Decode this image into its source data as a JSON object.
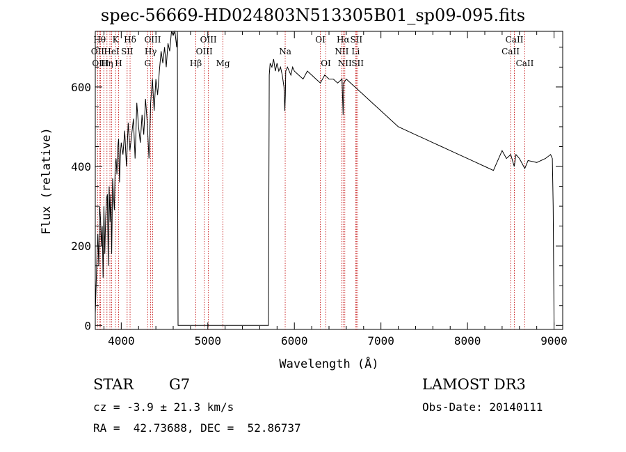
{
  "chart_data": {
    "type": "line",
    "title": "spec-56669-HD024803N513305B01_sp09-095.fits",
    "xlabel": "Wavelength (Å)",
    "ylabel": "Flux (relative)",
    "xlim": [
      3700,
      9100
    ],
    "ylim": [
      -10,
      740
    ],
    "xticks": [
      4000,
      5000,
      6000,
      7000,
      8000,
      9000
    ],
    "yticks": [
      0,
      200,
      400,
      600
    ],
    "series": [
      {
        "name": "spectrum",
        "x": [
          3700,
          3710,
          3720,
          3730,
          3740,
          3750,
          3760,
          3770,
          3780,
          3790,
          3800,
          3810,
          3820,
          3830,
          3840,
          3850,
          3860,
          3870,
          3880,
          3890,
          3900,
          3910,
          3920,
          3930,
          3940,
          3950,
          3960,
          3970,
          3980,
          3990,
          4000,
          4020,
          4040,
          4060,
          4080,
          4100,
          4120,
          4140,
          4160,
          4180,
          4200,
          4220,
          4240,
          4260,
          4280,
          4300,
          4320,
          4340,
          4360,
          4380,
          4400,
          4420,
          4440,
          4460,
          4480,
          4500,
          4520,
          4540,
          4560,
          4580,
          4600,
          4620,
          4640,
          4648,
          4652,
          4656,
          4660,
          5700,
          5710,
          5720,
          5740,
          5760,
          5780,
          5800,
          5820,
          5840,
          5860,
          5880,
          5890,
          5896,
          5900,
          5920,
          5940,
          5960,
          5980,
          6000,
          6050,
          6100,
          6150,
          6200,
          6250,
          6300,
          6350,
          6400,
          6450,
          6500,
          6550,
          6563,
          6570,
          6600,
          6650,
          6700,
          6750,
          6800,
          6850,
          6900,
          6950,
          7000,
          7100,
          7200,
          7300,
          7400,
          7500,
          7600,
          7700,
          7800,
          7900,
          8000,
          8100,
          8200,
          8300,
          8400,
          8450,
          8500,
          8540,
          8560,
          8600,
          8662,
          8700,
          8800,
          8900,
          8960,
          8980,
          8990,
          9000
        ],
        "y": [
          30,
          100,
          180,
          230,
          150,
          300,
          270,
          200,
          250,
          120,
          300,
          180,
          270,
          320,
          330,
          150,
          350,
          260,
          330,
          180,
          370,
          330,
          290,
          400,
          420,
          380,
          450,
          470,
          360,
          430,
          460,
          430,
          490,
          400,
          510,
          440,
          480,
          520,
          420,
          560,
          500,
          460,
          530,
          480,
          570,
          510,
          420,
          560,
          620,
          540,
          620,
          580,
          640,
          690,
          660,
          700,
          650,
          710,
          690,
          760,
          730,
          760,
          700,
          740,
          300,
          0,
          0,
          0,
          630,
          660,
          650,
          670,
          640,
          660,
          640,
          650,
          630,
          600,
          540,
          580,
          640,
          650,
          640,
          630,
          650,
          640,
          630,
          620,
          640,
          630,
          620,
          610,
          630,
          620,
          620,
          610,
          620,
          530,
          610,
          620,
          610,
          600,
          590,
          580,
          570,
          560,
          550,
          540,
          520,
          500,
          490,
          480,
          470,
          460,
          450,
          440,
          430,
          420,
          410,
          400,
          390,
          440,
          420,
          430,
          400,
          430,
          420,
          395,
          415,
          410,
          420,
          430,
          420,
          300,
          0
        ]
      }
    ],
    "line_markers": [
      {
        "wavelength": 3727,
        "label": "OII",
        "row": 1
      },
      {
        "wavelength": 3750,
        "label": "Hθ",
        "row": 0
      },
      {
        "wavelength": 3760,
        "label": "OIII",
        "row": 2
      },
      {
        "wavelength": 3798,
        "label": "",
        "row": 0
      },
      {
        "wavelength": 3835,
        "label": "Hη",
        "row": 2
      },
      {
        "wavelength": 3869,
        "label": "",
        "row": 1
      },
      {
        "wavelength": 3889,
        "label": "HeI",
        "row": 1
      },
      {
        "wavelength": 3934,
        "label": "K",
        "row": 0
      },
      {
        "wavelength": 3969,
        "label": "H",
        "row": 2
      },
      {
        "wavelength": 4068,
        "label": "SII",
        "row": 1
      },
      {
        "wavelength": 4102,
        "label": "Hδ",
        "row": 0
      },
      {
        "wavelength": 4305,
        "label": "G",
        "row": 2
      },
      {
        "wavelength": 4340,
        "label": "Hγ",
        "row": 1
      },
      {
        "wavelength": 4363,
        "label": "OIII",
        "row": 0
      },
      {
        "wavelength": 4861,
        "label": "Hβ",
        "row": 2
      },
      {
        "wavelength": 4959,
        "label": "OIII",
        "row": 1
      },
      {
        "wavelength": 5007,
        "label": "OIII",
        "row": 0
      },
      {
        "wavelength": 5175,
        "label": "Mg",
        "row": 2
      },
      {
        "wavelength": 5894,
        "label": "Na",
        "row": 1
      },
      {
        "wavelength": 6300,
        "label": "OI",
        "row": 0
      },
      {
        "wavelength": 6364,
        "label": "OI",
        "row": 2
      },
      {
        "wavelength": 6548,
        "label": "NII",
        "row": 1
      },
      {
        "wavelength": 6563,
        "label": "Hα",
        "row": 0
      },
      {
        "wavelength": 6583,
        "label": "NII",
        "row": 2
      },
      {
        "wavelength": 6708,
        "label": "Li",
        "row": 1
      },
      {
        "wavelength": 6716,
        "label": "SII",
        "row": 0
      },
      {
        "wavelength": 6731,
        "label": "SII",
        "row": 2
      },
      {
        "wavelength": 8498,
        "label": "CaII",
        "row": 1
      },
      {
        "wavelength": 8542,
        "label": "CaII",
        "row": 0
      },
      {
        "wavelength": 8662,
        "label": "CaII",
        "row": 2
      }
    ]
  },
  "info": {
    "class_label": "STAR",
    "subclass": "G7",
    "survey": "LAMOST DR3",
    "cz": "cz = -3.9 ± 21.3 km/s",
    "obs_date": "Obs-Date: 20140111",
    "coords": "RA =  42.73688, DEC =  52.86737"
  },
  "colors": {
    "marker": "#c00000",
    "line": "#000000"
  }
}
